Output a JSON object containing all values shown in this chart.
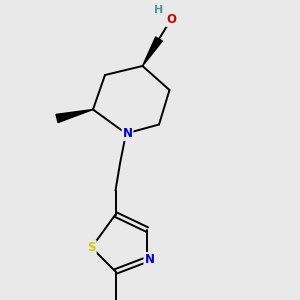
{
  "background_color": "#e9e9e9",
  "atom_colors": {
    "C": "#000000",
    "N": "#0000cc",
    "O": "#cc0000",
    "S": "#cccc00",
    "H_O": "#4d9999"
  },
  "figsize": [
    3.0,
    3.0
  ],
  "dpi": 100,
  "lw": 1.4,
  "fs": 8.5
}
